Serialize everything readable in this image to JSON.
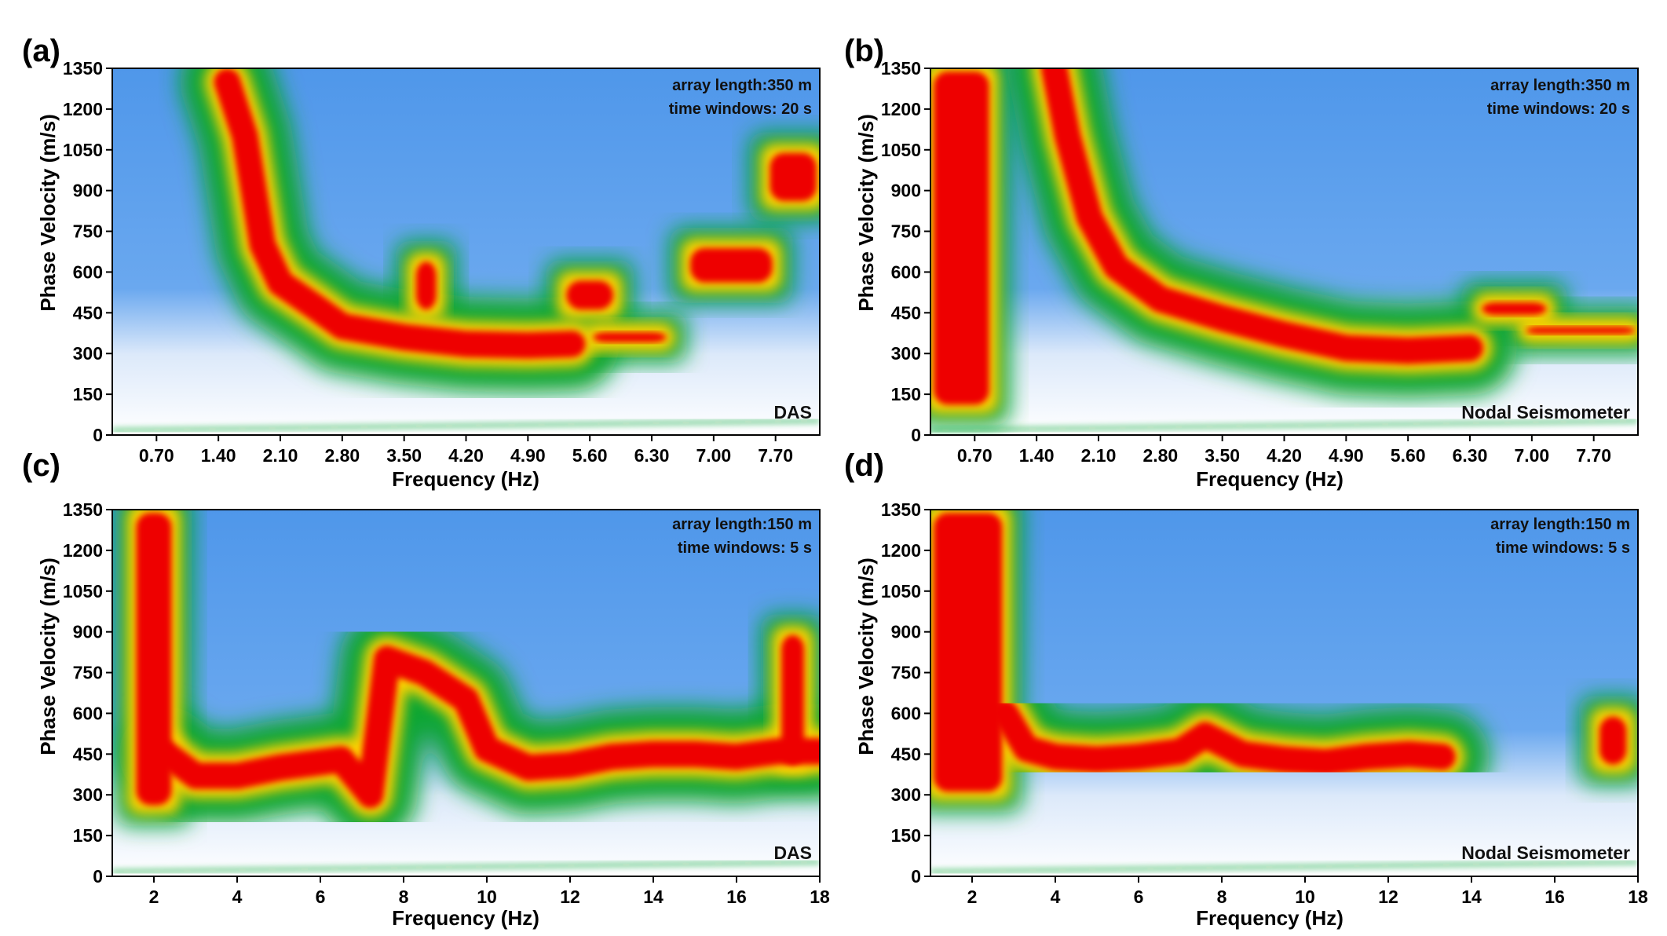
{
  "figure": {
    "description_title": "Dispersion spectra comparison",
    "colormap": [
      "#ffffff",
      "#4f97ea",
      "#11a633",
      "#ffd200",
      "#ee0000"
    ]
  },
  "chart_data": [
    {
      "type": "heatmap",
      "panel": "(a)",
      "source": "DAS",
      "annotations": [
        "array length:350 m",
        "time windows: 20 s"
      ],
      "xlabel": "Frequency (Hz)",
      "ylabel": "Phase Velocity (m/s)",
      "xlim": [
        0.2,
        8.2
      ],
      "ylim": [
        0,
        1350
      ],
      "xticks": [
        0.7,
        1.4,
        2.1,
        2.8,
        3.5,
        4.2,
        4.9,
        5.6,
        6.3,
        7.0,
        7.7
      ],
      "xtick_labels": [
        "0.70",
        "1.40",
        "2.10",
        "2.80",
        "3.50",
        "4.20",
        "4.90",
        "5.60",
        "6.30",
        "7.00",
        "7.70"
      ],
      "yticks": [
        0,
        150,
        300,
        450,
        600,
        750,
        900,
        1050,
        1200,
        1350
      ],
      "ytick_labels": [
        "0",
        "150",
        "300",
        "450",
        "600",
        "750",
        "900",
        "1050",
        "1200",
        "1350"
      ],
      "ridge": [
        [
          1.5,
          1300
        ],
        [
          1.7,
          1100
        ],
        [
          1.9,
          700
        ],
        [
          2.1,
          560
        ],
        [
          2.5,
          470
        ],
        [
          2.8,
          400
        ],
        [
          3.5,
          360
        ],
        [
          4.2,
          335
        ],
        [
          4.9,
          330
        ],
        [
          5.4,
          335
        ]
      ],
      "features": [
        {
          "x": [
            3.6,
            3.9
          ],
          "y": [
            450,
            650
          ]
        },
        {
          "x": [
            5.3,
            5.9
          ],
          "y": [
            450,
            580
          ]
        },
        {
          "x": [
            5.6,
            6.5
          ],
          "y": [
            330,
            390
          ]
        },
        {
          "x": [
            6.7,
            7.7
          ],
          "y": [
            550,
            700
          ]
        },
        {
          "x": [
            7.6,
            8.2
          ],
          "y": [
            850,
            1050
          ]
        }
      ]
    },
    {
      "type": "heatmap",
      "panel": "(b)",
      "source": "Nodal Seismometer",
      "annotations": [
        "array length:350 m",
        "time windows: 20 s"
      ],
      "xlabel": "Frequency (Hz)",
      "ylabel": "Phase Velocity (m/s)",
      "xlim": [
        0.2,
        8.2
      ],
      "ylim": [
        0,
        1350
      ],
      "xticks": [
        0.7,
        1.4,
        2.1,
        2.8,
        3.5,
        4.2,
        4.9,
        5.6,
        6.3,
        7.0,
        7.7
      ],
      "xtick_labels": [
        "0.70",
        "1.40",
        "2.10",
        "2.80",
        "3.50",
        "4.20",
        "4.90",
        "5.60",
        "6.30",
        "7.00",
        "7.70"
      ],
      "yticks": [
        0,
        150,
        300,
        450,
        600,
        750,
        900,
        1050,
        1200,
        1350
      ],
      "ytick_labels": [
        "0",
        "150",
        "300",
        "450",
        "600",
        "750",
        "900",
        "1050",
        "1200",
        "1350"
      ],
      "ridge": [
        [
          1.6,
          1350
        ],
        [
          1.75,
          1100
        ],
        [
          2.0,
          800
        ],
        [
          2.3,
          620
        ],
        [
          2.8,
          500
        ],
        [
          3.5,
          430
        ],
        [
          4.2,
          370
        ],
        [
          4.9,
          320
        ],
        [
          5.6,
          310
        ],
        [
          6.3,
          320
        ]
      ],
      "features": [
        {
          "x": [
            0.2,
            0.9
          ],
          "y": [
            100,
            1350
          ]
        },
        {
          "x": [
            6.4,
            7.2
          ],
          "y": [
            430,
            500
          ]
        },
        {
          "x": [
            6.9,
            8.2
          ],
          "y": [
            360,
            410
          ]
        }
      ]
    },
    {
      "type": "heatmap",
      "panel": "(c)",
      "source": "DAS",
      "annotations": [
        "array length:150 m",
        "time windows: 5 s"
      ],
      "xlabel": "Frequency (Hz)",
      "ylabel": "Phase Velocity (m/s)",
      "xlim": [
        1,
        18
      ],
      "ylim": [
        0,
        1350
      ],
      "xticks": [
        2,
        4,
        6,
        8,
        10,
        12,
        14,
        16,
        18
      ],
      "xtick_labels": [
        "2",
        "4",
        "6",
        "8",
        "10",
        "12",
        "14",
        "16",
        "18"
      ],
      "yticks": [
        0,
        150,
        300,
        450,
        600,
        750,
        900,
        1050,
        1200,
        1350
      ],
      "ytick_labels": [
        "0",
        "150",
        "300",
        "450",
        "600",
        "750",
        "900",
        "1050",
        "1200",
        "1350"
      ],
      "ridge": [
        [
          2.3,
          450
        ],
        [
          3,
          370
        ],
        [
          4,
          370
        ],
        [
          5,
          400
        ],
        [
          6.5,
          430
        ],
        [
          7.2,
          300
        ],
        [
          7.6,
          800
        ],
        [
          8.5,
          750
        ],
        [
          9.5,
          650
        ],
        [
          10,
          470
        ],
        [
          11,
          400
        ],
        [
          12,
          410
        ],
        [
          13,
          440
        ],
        [
          14,
          450
        ],
        [
          15,
          450
        ],
        [
          16,
          440
        ],
        [
          17,
          460
        ],
        [
          18,
          460
        ]
      ],
      "features": [
        {
          "x": [
            1.5,
            2.5
          ],
          "y": [
            250,
            1350
          ]
        },
        {
          "x": [
            17,
            17.7
          ],
          "y": [
            400,
            900
          ]
        }
      ]
    },
    {
      "type": "heatmap",
      "panel": "(d)",
      "source": "Nodal Seismometer",
      "annotations": [
        "array length:150 m",
        "time windows: 5 s"
      ],
      "xlabel": "Frequency (Hz)",
      "ylabel": "Phase Velocity (m/s)",
      "xlim": [
        1,
        18
      ],
      "ylim": [
        0,
        1350
      ],
      "xticks": [
        2,
        4,
        6,
        8,
        10,
        12,
        14,
        16,
        18
      ],
      "xtick_labels": [
        "2",
        "4",
        "6",
        "8",
        "10",
        "12",
        "14",
        "16",
        "18"
      ],
      "yticks": [
        0,
        150,
        300,
        450,
        600,
        750,
        900,
        1050,
        1200,
        1350
      ],
      "ytick_labels": [
        "0",
        "150",
        "300",
        "450",
        "600",
        "750",
        "900",
        "1050",
        "1200",
        "1350"
      ],
      "ridge": [
        [
          2.8,
          600
        ],
        [
          3.3,
          470
        ],
        [
          4,
          440
        ],
        [
          5,
          430
        ],
        [
          6,
          440
        ],
        [
          7,
          460
        ],
        [
          7.6,
          520
        ],
        [
          8.5,
          450
        ],
        [
          9.5,
          430
        ],
        [
          10.5,
          420
        ],
        [
          11.5,
          440
        ],
        [
          12.5,
          450
        ],
        [
          13.3,
          440
        ]
      ],
      "features": [
        {
          "x": [
            1,
            2.8
          ],
          "y": [
            300,
            1350
          ]
        },
        {
          "x": [
            17,
            17.8
          ],
          "y": [
            400,
            600
          ]
        }
      ]
    }
  ]
}
